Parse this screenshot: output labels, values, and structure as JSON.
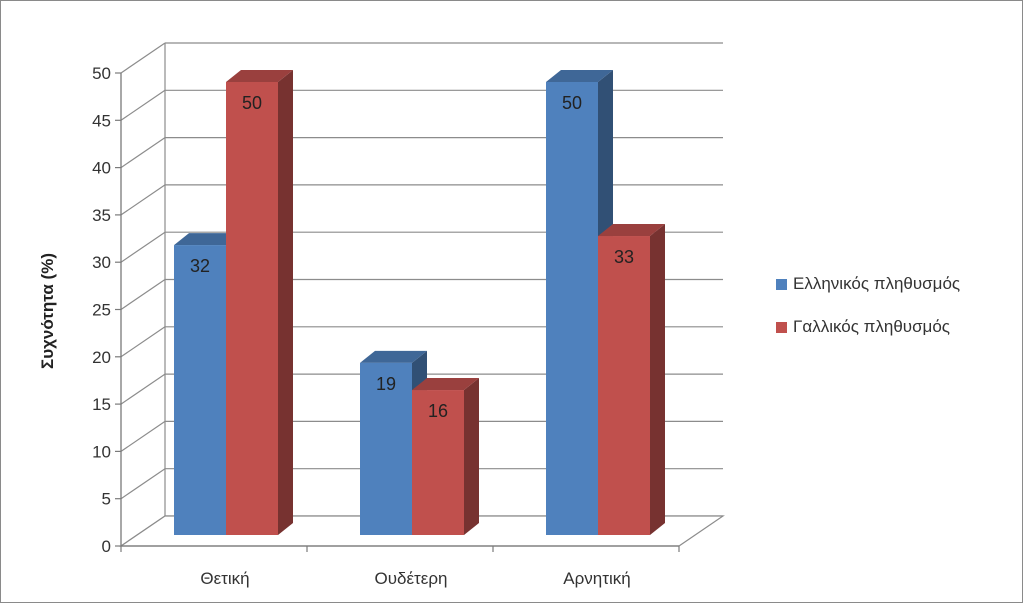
{
  "chart_data": {
    "type": "bar",
    "categories": [
      "Θετική",
      "Ουδέτερη",
      "Αρνητική"
    ],
    "series": [
      {
        "name": "Ελληνικός πληθυσμός",
        "values": [
          32,
          19,
          50
        ],
        "color": "#4f81bd"
      },
      {
        "name": "Γαλλικός πληθυσμός",
        "values": [
          50,
          16,
          33
        ],
        "color": "#c0504d"
      }
    ],
    "ylabel": "Συχνότητα (%)",
    "ylim": [
      0,
      50
    ],
    "yticks": [
      0,
      5,
      10,
      15,
      20,
      25,
      30,
      35,
      40,
      45,
      50
    ],
    "grid": true,
    "three_d": true,
    "data_labels": true,
    "legend_position": "right"
  }
}
